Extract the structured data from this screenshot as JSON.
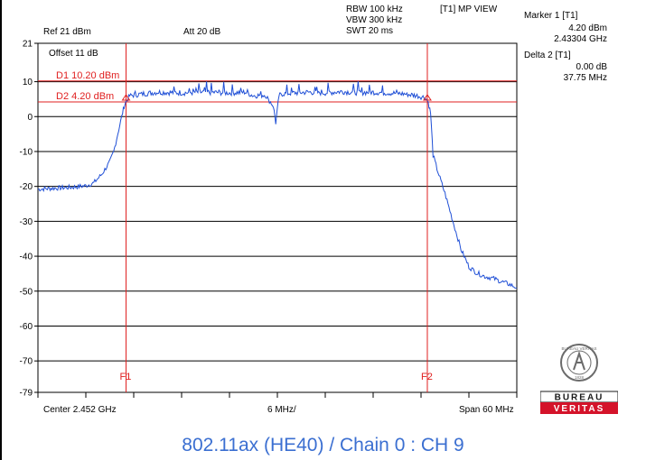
{
  "header": {
    "rbw": "RBW 100 kHz",
    "vbw": "VBW 300 kHz",
    "swt": "SWT 20 ms",
    "view": "[T1] MP VIEW",
    "ref": "Ref 21 dBm",
    "att": "Att  20 dB",
    "offset": "Offset 11 dB"
  },
  "markers": {
    "marker1_label": "Marker 1 [T1]",
    "marker1_level": "4.20 dBm",
    "marker1_freq": "2.43304 GHz",
    "delta2_label": "Delta 2 [T1]",
    "delta2_level": "0.00 dB",
    "delta2_freq": "37.75 MHz"
  },
  "footer": {
    "center": "Center 2.452 GHz",
    "div": "6 MHz/",
    "span": "Span 60 MHz"
  },
  "caption": "802.11ax (HE40) / Chain 0 : CH 9",
  "logo": {
    "top_text": "BUREAU VERITAS",
    "year": "1828",
    "brand_top": "BUREAU",
    "brand_bottom": "VERITAS"
  },
  "colors": {
    "trace": "#1f4fd6",
    "marker_lines": "#e02020",
    "grid": "#000000",
    "caption": "#3b6fd1",
    "brand_red": "#d4132a"
  },
  "chart_data": {
    "type": "line",
    "x_unit": "MHz offset from center",
    "xlim": [
      -30,
      30
    ],
    "ylim": [
      -79,
      21
    ],
    "yticks": [
      21,
      10,
      0,
      -10,
      -20,
      -30,
      -40,
      -50,
      -60,
      -70,
      -79
    ],
    "ytick_labels": [
      "21",
      "10",
      "0",
      "-10",
      "-20",
      "-30",
      "-40",
      "-50",
      "-60",
      "-70",
      "-79"
    ],
    "display_lines": [
      {
        "label": "D1 10.20 dBm",
        "y": 10.2
      },
      {
        "label": "D2 4.20 dBm",
        "y": 4.2
      }
    ],
    "frequency_lines": [
      {
        "label": "F1",
        "x": -18.96
      },
      {
        "label": "F2",
        "x": 18.79
      }
    ],
    "markers": [
      {
        "label": "1",
        "x": -18.96,
        "y": 4.2
      },
      {
        "label": "2",
        "x": 18.79,
        "y": 4.2
      }
    ],
    "series": [
      {
        "x": [
          -30,
          -28,
          -26,
          -24,
          -23,
          -22,
          -21,
          -20.5,
          -20,
          -19.5,
          -19.2,
          -19,
          -18.5,
          -17,
          -15,
          -12,
          -9,
          -6,
          -4,
          -3,
          -1.5,
          -0.5,
          -0.2,
          0,
          0.2,
          0.5,
          2,
          4,
          6,
          8,
          10,
          12,
          14,
          16,
          17.5,
          18.5,
          18.9,
          19.2,
          19.5,
          20,
          21,
          22,
          23,
          24,
          25,
          26,
          27,
          28,
          29,
          30
        ],
        "y": [
          -20.8,
          -20.5,
          -20.3,
          -19.8,
          -19,
          -16.5,
          -13,
          -10,
          -5,
          0,
          3,
          4.2,
          6,
          6.5,
          7,
          6.8,
          7,
          6.8,
          7,
          6,
          6.2,
          3,
          -1.8,
          2,
          6,
          6.5,
          6.8,
          7,
          6.8,
          7.2,
          6.9,
          7,
          6.8,
          6.5,
          6,
          5.5,
          4.2,
          1,
          -11,
          -15,
          -22,
          -30,
          -38,
          -43,
          -44.8,
          -45.8,
          -46.3,
          -47.2,
          -48,
          -49
        ]
      }
    ]
  }
}
